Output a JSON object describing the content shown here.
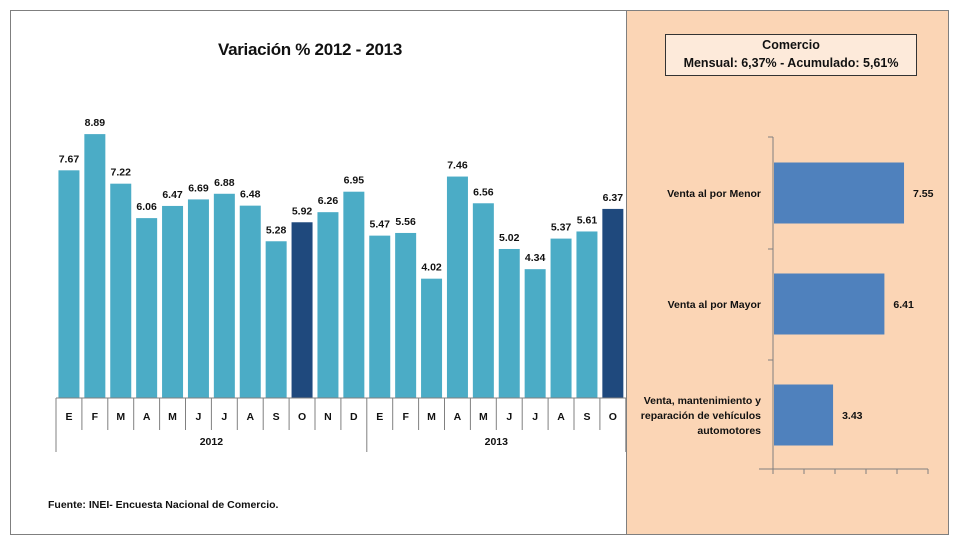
{
  "title": "Variación %  2012 - 2013",
  "summary": {
    "heading": "Comercio",
    "line": "Mensual: 6,37%  -  Acumulado: 5,61%"
  },
  "source": "Fuente:  INEI- Encuesta  Nacional de Comercio.",
  "colors": {
    "bar": "#4bacc6",
    "bar_highlight": "#1f497d",
    "side_bar": "#4f81bd",
    "panel": "#fbd5b5"
  },
  "chart_data": [
    {
      "type": "bar",
      "title": "Variación %  2012 - 2013",
      "categories": [
        "E",
        "F",
        "M",
        "A",
        "M",
        "J",
        "J",
        "A",
        "S",
        "O",
        "N",
        "D",
        "E",
        "F",
        "M",
        "A",
        "M",
        "J",
        "J",
        "A",
        "S",
        "O"
      ],
      "groups": [
        {
          "label": "2012",
          "count": 12
        },
        {
          "label": "2013",
          "count": 10
        }
      ],
      "values": [
        7.67,
        8.89,
        7.22,
        6.06,
        6.47,
        6.69,
        6.88,
        6.48,
        5.28,
        5.92,
        6.26,
        6.95,
        5.47,
        5.56,
        4.02,
        7.46,
        6.56,
        5.02,
        4.34,
        5.37,
        5.61,
        6.37
      ],
      "highlight_indices": [
        9,
        21
      ],
      "ylim": [
        0,
        9.5
      ],
      "grid": false
    },
    {
      "type": "bar",
      "orientation": "horizontal",
      "categories": [
        "Venta al por Menor",
        "Venta al por Mayor",
        "Venta, mantenimiento y reparación de vehículos automotores"
      ],
      "values": [
        7.55,
        6.41,
        3.43
      ],
      "xlim": [
        0,
        9
      ],
      "grid": false
    }
  ]
}
